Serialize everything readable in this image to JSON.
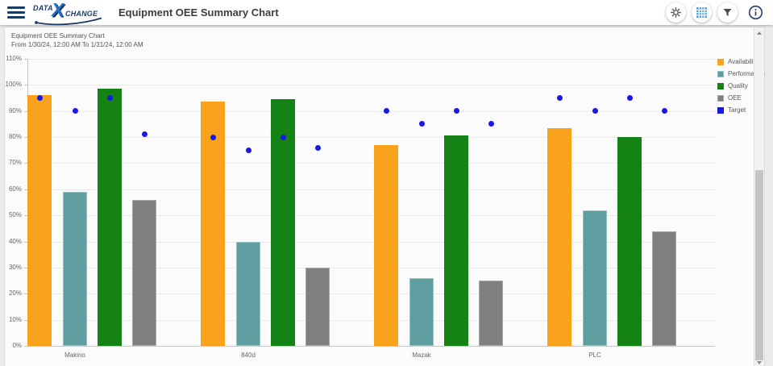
{
  "header": {
    "logo_data": "DATA",
    "logo_x": "X",
    "logo_change": "CHANGE",
    "title": "Equipment OEE Summary Chart",
    "icon_buttons": [
      {
        "name": "settings",
        "icon": "gear-icon",
        "active": false
      },
      {
        "name": "grid-view",
        "icon": "grid-icon",
        "active": true
      },
      {
        "name": "filter",
        "icon": "filter-icon",
        "active": false
      },
      {
        "name": "info",
        "icon": "info-icon",
        "active": false
      }
    ]
  },
  "chart_data": {
    "type": "bar",
    "title": "Equipment OEE Summary Chart",
    "subtitle": "From 1/30/24, 12:00 AM To 1/31/24, 12:00 AM",
    "categories": [
      "Makino",
      "840d",
      "Mazak",
      "PLC"
    ],
    "series": [
      {
        "name": "Availability",
        "color": "#F9A21C",
        "values": [
          96,
          93.5,
          77,
          83.5
        ]
      },
      {
        "name": "Performance",
        "color": "#5F9EA0",
        "border_color": "#96C2C4",
        "values": [
          59,
          40,
          26,
          52
        ]
      },
      {
        "name": "Quality",
        "color": "#148214",
        "values": [
          98.5,
          94.5,
          80.5,
          80
        ]
      },
      {
        "name": "OEE",
        "color": "#7F7F7F",
        "border_color": "#A8A8A8",
        "values": [
          56,
          30,
          25,
          44
        ]
      }
    ],
    "target_series": {
      "name": "Target",
      "type": "point",
      "color": "#1717E6",
      "values_by_category_per_series": [
        [
          95,
          90,
          95,
          81
        ],
        [
          80,
          75,
          80,
          76
        ],
        [
          90,
          85,
          90,
          85
        ],
        [
          95,
          90,
          95,
          90
        ]
      ]
    },
    "ylim": [
      0,
      110
    ],
    "ytick_step": 10,
    "ytick_format": "percent",
    "grid": true,
    "legend_position": "top-right",
    "legend_entries": [
      "Availability",
      "Performance",
      "Quality",
      "OEE",
      "Target"
    ]
  }
}
